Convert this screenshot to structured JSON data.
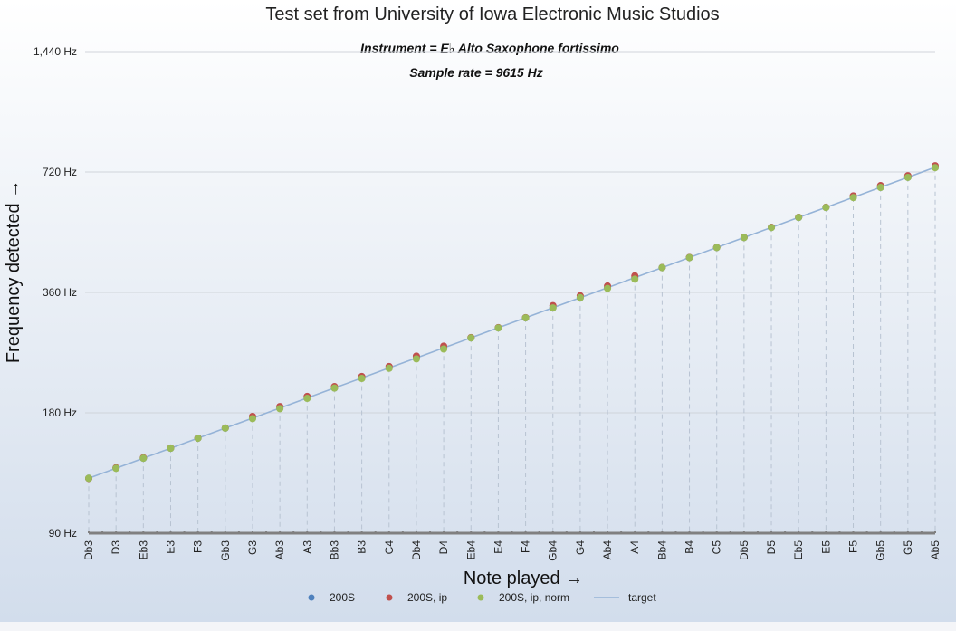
{
  "chart_data": {
    "type": "scatter",
    "title": "Test set from University of Iowa Electronic Music Studios",
    "annotations": [
      "Instrument = E♭ Alto Saxophone fortissimo",
      "Sample rate = 9615 Hz"
    ],
    "xlabel": "Note played →",
    "ylabel": "Frequency detected →",
    "y_scale": "log2",
    "ylim": [
      90,
      1440
    ],
    "y_ticks": [
      90,
      180,
      360,
      720,
      1440
    ],
    "y_tick_labels": [
      "90 Hz",
      "180 Hz",
      "360 Hz",
      "720 Hz",
      "1,440 Hz"
    ],
    "grid": true,
    "legend_position": "bottom",
    "categories": [
      "Db3",
      "D3",
      "Eb3",
      "E3",
      "F3",
      "Gb3",
      "G3",
      "Ab3",
      "A3",
      "Bb3",
      "B3",
      "C4",
      "Db4",
      "D4",
      "Eb4",
      "E4",
      "F4",
      "Gb4",
      "G4",
      "Ab4",
      "A4",
      "Bb4",
      "B4",
      "C5",
      "Db5",
      "D5",
      "Eb5",
      "E5",
      "F5",
      "Gb5",
      "G5",
      "Ab5"
    ],
    "series": [
      {
        "name": "200S",
        "kind": "points",
        "color": "#4f81bd",
        "values": [
          123.5,
          131.0,
          138.6,
          146.8,
          155.6,
          164.8,
          174.6,
          185.0,
          196.0,
          207.7,
          220.0,
          233.1,
          246.9,
          261.6,
          277.2,
          293.7,
          311.1,
          329.6,
          349.2,
          370.0,
          392.0,
          415.3,
          440.0,
          466.2,
          493.9,
          523.3,
          554.4,
          587.3,
          622.3,
          659.3,
          698.5,
          740.0
        ]
      },
      {
        "name": "200S, ip",
        "kind": "points",
        "color": "#c0504d",
        "values": [
          123.4,
          131.2,
          139.0,
          147.0,
          155.6,
          165.0,
          176.3,
          186.6,
          197.8,
          209.3,
          221.8,
          235.0,
          249.5,
          264.2,
          277.6,
          293.9,
          311.3,
          333.6,
          353.0,
          373.5,
          396.1,
          415.4,
          440.3,
          466.5,
          494.2,
          523.8,
          554.9,
          587.8,
          627.6,
          665.7,
          704.8,
          746.5
        ]
      },
      {
        "name": "200S, ip, norm",
        "kind": "points",
        "color": "#9bbb59",
        "values": [
          123.5,
          130.8,
          138.6,
          146.8,
          155.5,
          164.8,
          174.1,
          184.4,
          195.6,
          207.6,
          219.4,
          232.6,
          245.6,
          259.9,
          277.0,
          293.4,
          311.0,
          329.3,
          349.3,
          368.4,
          388.6,
          415.2,
          439.8,
          466.0,
          493.7,
          523.0,
          554.3,
          587.2,
          621.5,
          658.9,
          698.0,
          738.2
        ]
      },
      {
        "name": "target",
        "kind": "line",
        "color": "#95b3d7",
        "values": [
          123.5,
          130.8,
          138.6,
          146.8,
          155.6,
          164.8,
          174.6,
          185.0,
          196.0,
          207.7,
          220.0,
          233.1,
          246.9,
          261.6,
          277.2,
          293.7,
          311.1,
          329.6,
          349.2,
          370.0,
          392.0,
          415.3,
          440.0,
          466.2,
          493.9,
          523.3,
          554.4,
          587.3,
          622.3,
          659.3,
          698.5,
          740.0
        ]
      }
    ]
  }
}
